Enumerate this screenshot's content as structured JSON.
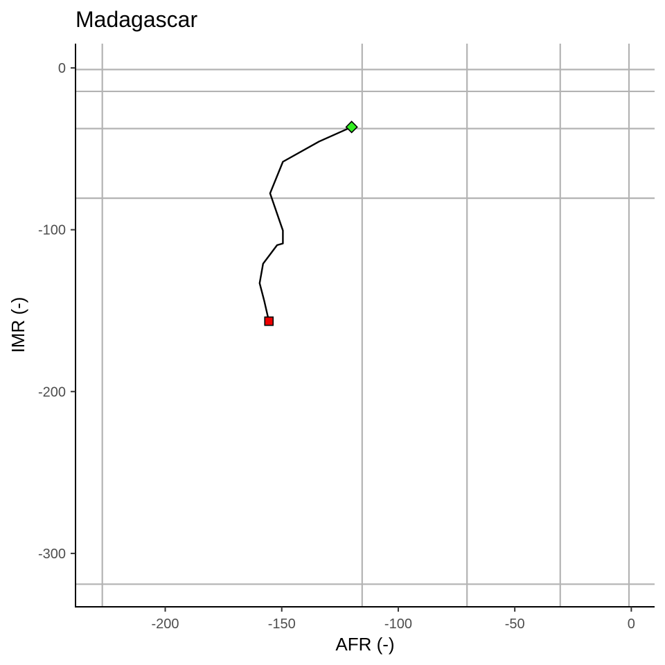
{
  "chart_data": {
    "type": "line",
    "title": "Madagascar",
    "xlabel": "AFR (-)",
    "ylabel": "IMR (-)",
    "xlim": [
      -238.5,
      10
    ],
    "ylim": [
      -333,
      15
    ],
    "x_ticks": [
      -200,
      -150,
      -100,
      -50,
      0
    ],
    "y_ticks": [
      0,
      -100,
      -200,
      -300
    ],
    "grid": false,
    "legend": "none",
    "reference_lines": {
      "vertical_x": [
        -227,
        -115.5,
        -70.5,
        -30.5,
        -1
      ],
      "horizontal_y": [
        -1,
        -14.5,
        -37.5,
        -80.5,
        -319
      ]
    },
    "series": [
      {
        "x": [
          -155.5,
          -157.5,
          -159.5,
          -158,
          -152,
          -149.5,
          -149.5,
          -155,
          -149.5,
          -134,
          -120
        ],
        "y": [
          -156.5,
          -144,
          -133,
          -121,
          -109.5,
          -108.5,
          -100.5,
          -77.5,
          -58,
          -45.5,
          -36.5
        ],
        "color": "#000000"
      }
    ],
    "markers": {
      "start": {
        "x": -155.5,
        "y": -156.5,
        "shape": "square",
        "color": "#ee0000"
      },
      "end": {
        "x": -120,
        "y": -36.5,
        "shape": "diamond",
        "color": "#33ee22"
      }
    }
  }
}
